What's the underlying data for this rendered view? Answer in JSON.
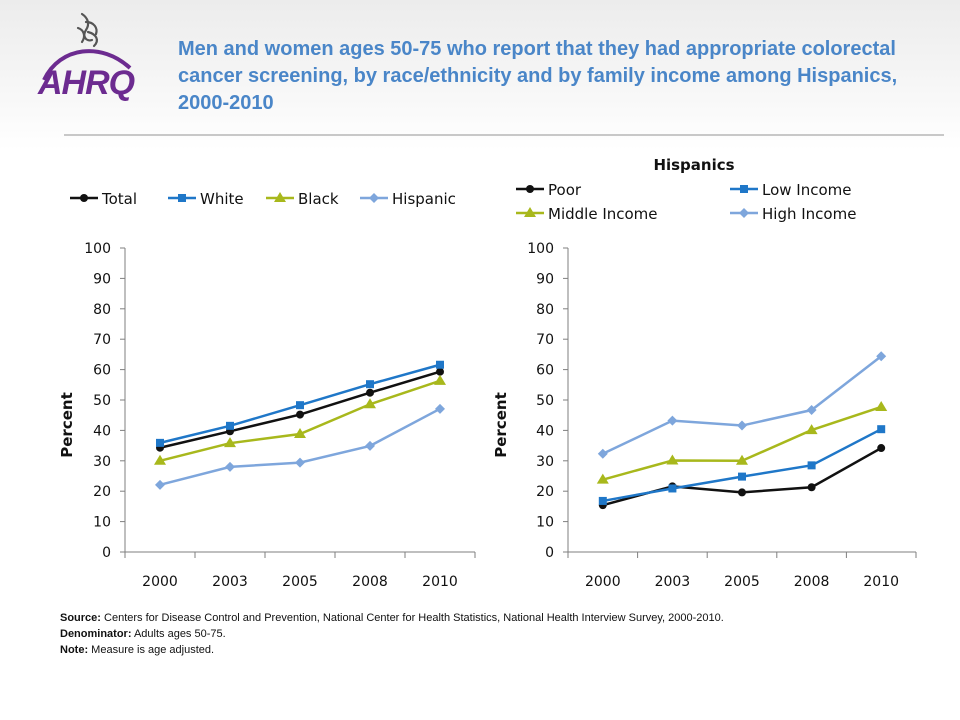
{
  "title": "Men and women ages 50-75 who report that they had appropriate colorectal cancer screening, by race/ethnicity and by family income among Hispanics, 2000-2010",
  "logo": {
    "text": "AHRQ",
    "icon": "hhs-eagle-icon"
  },
  "colors": {
    "title": "#4a86c8",
    "black_series": "#111111",
    "blue_series": "#1f77c8",
    "olive_series": "#a8b81c",
    "light_blue_series": "#7ea6dc",
    "logo_purple": "#6c2b90"
  },
  "chart_data": [
    {
      "type": "line",
      "title": "",
      "xlabel": "",
      "ylabel": "Percent",
      "x": [
        "2000",
        "2003",
        "2005",
        "2008",
        "2010"
      ],
      "ylim": [
        0,
        100
      ],
      "yticks": [
        "0",
        "10",
        "20",
        "30",
        "40",
        "50",
        "60",
        "70",
        "80",
        "90",
        "100"
      ],
      "legend": "top",
      "grid": false,
      "series": [
        {
          "name": "Total",
          "marker": "circle",
          "color": "#111111",
          "values": [
            34.3,
            39.7,
            45.2,
            52.4,
            59.3
          ]
        },
        {
          "name": "White",
          "marker": "square",
          "color": "#1f77c8",
          "values": [
            35.9,
            41.5,
            48.3,
            55.2,
            61.6
          ]
        },
        {
          "name": "Black",
          "marker": "triangle",
          "color": "#a8b81c",
          "values": [
            30.0,
            35.8,
            38.8,
            48.6,
            56.3
          ]
        },
        {
          "name": "Hispanic",
          "marker": "diamond",
          "color": "#7ea6dc",
          "values": [
            22.1,
            28.0,
            29.4,
            34.9,
            47.1
          ]
        }
      ]
    },
    {
      "type": "line",
      "title": "Hispanics",
      "xlabel": "",
      "ylabel": "Percent",
      "x": [
        "2000",
        "2003",
        "2005",
        "2008",
        "2010"
      ],
      "ylim": [
        0,
        100
      ],
      "yticks": [
        "0",
        "10",
        "20",
        "30",
        "40",
        "50",
        "60",
        "70",
        "80",
        "90",
        "100"
      ],
      "legend": "top",
      "grid": false,
      "series": [
        {
          "name": "Poor",
          "marker": "circle",
          "color": "#111111",
          "values": [
            15.4,
            21.6,
            19.6,
            21.3,
            34.2
          ]
        },
        {
          "name": "Low Income",
          "marker": "square",
          "color": "#1f77c8",
          "values": [
            16.8,
            20.9,
            24.8,
            28.5,
            40.4
          ]
        },
        {
          "name": "Middle Income",
          "marker": "triangle",
          "color": "#a8b81c",
          "values": [
            23.8,
            30.1,
            30.0,
            40.1,
            47.7
          ]
        },
        {
          "name": "High Income",
          "marker": "diamond",
          "color": "#7ea6dc",
          "values": [
            32.3,
            43.2,
            41.6,
            46.7,
            64.4
          ]
        }
      ]
    }
  ],
  "footnotes": {
    "source_label": "Source:",
    "source_text": "Centers for Disease Control and Prevention, National Center for Health Statistics, National Health Interview Survey, 2000-2010.",
    "denominator_label": "Denominator:",
    "denominator_text": "Adults ages 50-75.",
    "note_label": "Note:",
    "note_text": "Measure is age adjusted."
  }
}
